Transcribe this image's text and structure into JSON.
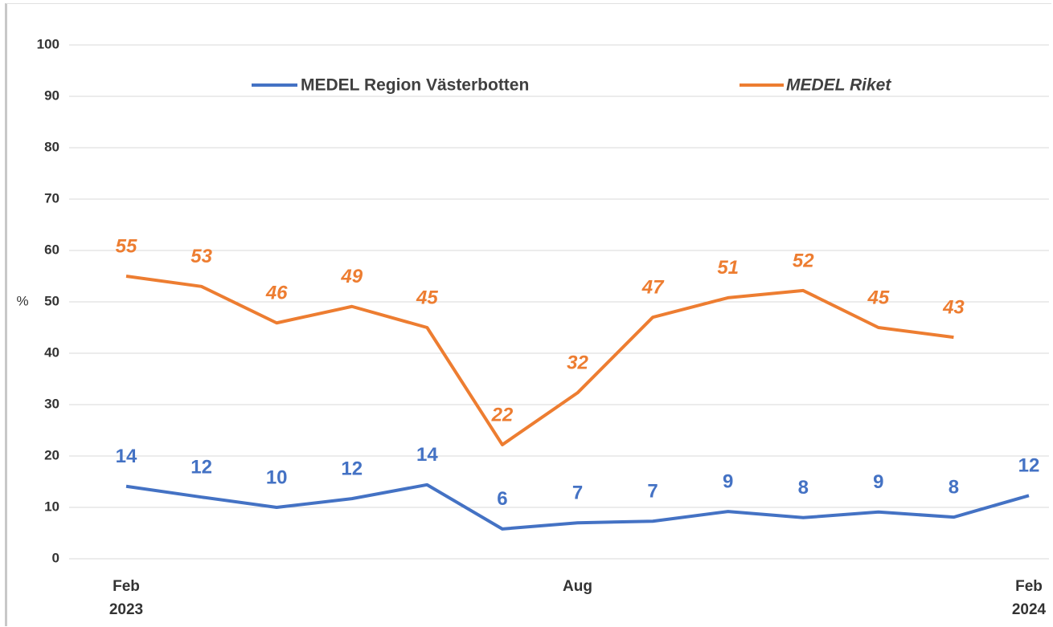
{
  "chart_data": {
    "type": "line",
    "y_label": "%",
    "categories": [
      "Feb 2023",
      null,
      null,
      null,
      null,
      null,
      "Aug",
      null,
      null,
      null,
      null,
      null,
      "Feb 2024"
    ],
    "ylim": [
      0,
      100
    ],
    "yticks": [
      0,
      10,
      20,
      30,
      40,
      50,
      60,
      70,
      80,
      90,
      100
    ],
    "grid": true,
    "legend": "top",
    "series": [
      {
        "name": "MEDEL Region Västerbotten",
        "color": "#4472c4",
        "values": [
          14.1,
          12.0,
          10.0,
          11.7,
          14.4,
          5.8,
          7.0,
          7.3,
          9.2,
          8.0,
          9.1,
          8.1,
          12.3
        ],
        "value_labels": [
          "14",
          "12",
          "10",
          "12",
          "14",
          "6",
          "7",
          "7",
          "9",
          "8",
          "9",
          "8",
          "12"
        ]
      },
      {
        "name": "MEDEL Riket",
        "color": "#ed7d31",
        "values": [
          55.0,
          53.0,
          45.9,
          49.1,
          45.0,
          22.2,
          32.3,
          47.0,
          50.8,
          52.2,
          45.0,
          43.1,
          null
        ],
        "value_labels": [
          "55",
          "53",
          "46",
          "49",
          "45",
          "22",
          "32",
          "47",
          "51",
          "52",
          "45",
          "43",
          null
        ]
      }
    ]
  }
}
